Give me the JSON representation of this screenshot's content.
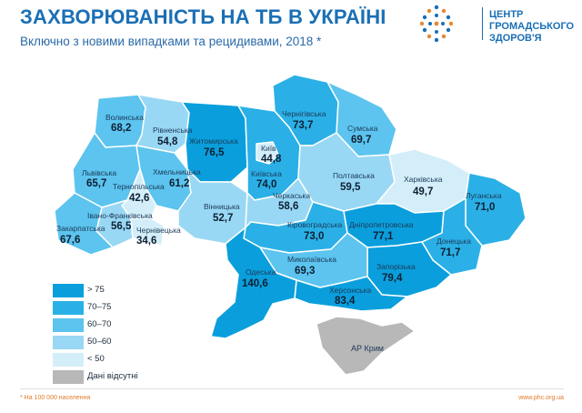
{
  "header": {
    "title": "ЗАХВОРЮВАНІСТЬ НА ТБ В УКРАЇНІ",
    "subtitle": "Включно з новими випадками та рецидивами, 2018 *"
  },
  "logo": {
    "line1": "ЦЕНТР",
    "line2": "ГРОМАДСЬКОГО",
    "line3": "ЗДОРОВ'Я",
    "color": "#1a6fb5",
    "accent": "#e8872e"
  },
  "colors": {
    "gt75": "#0a9fdc",
    "r70_75": "#2ab0e6",
    "r60_70": "#5cc4ee",
    "r50_60": "#99d8f4",
    "lt50": "#d4eef9",
    "nodata": "#b8b8b8"
  },
  "regions": [
    {
      "name": "Волинська",
      "value": "68,2"
    },
    {
      "name": "Рівненська",
      "value": "54,8"
    },
    {
      "name": "Житомирська",
      "value": "76,5"
    },
    {
      "name": "Чернігівська",
      "value": "73,7"
    },
    {
      "name": "Сумська",
      "value": "69,7"
    },
    {
      "name": "Київ",
      "value": "44,8"
    },
    {
      "name": "Київська",
      "value": "74,0"
    },
    {
      "name": "Львівська",
      "value": "65,7"
    },
    {
      "name": "Хмельницька",
      "value": "61,2"
    },
    {
      "name": "Тернопільська",
      "value": "42,6"
    },
    {
      "name": "Полтавська",
      "value": "59,5"
    },
    {
      "name": "Харківська",
      "value": "49,7"
    },
    {
      "name": "Луганська",
      "value": "71,0"
    },
    {
      "name": "Вінницька",
      "value": "52,7"
    },
    {
      "name": "Черкаська",
      "value": "58,6"
    },
    {
      "name": "Івано-Франківська",
      "value": "56,5"
    },
    {
      "name": "Закарпатська",
      "value": "67,6"
    },
    {
      "name": "Чернівецька",
      "value": "34,6"
    },
    {
      "name": "Кіровоградська",
      "value": "73,0"
    },
    {
      "name": "Дніпропетровська",
      "value": "77,1"
    },
    {
      "name": "Донецька",
      "value": "71,7"
    },
    {
      "name": "Одеська",
      "value": "140,6"
    },
    {
      "name": "Миколаївська",
      "value": "69,3"
    },
    {
      "name": "Запорізька",
      "value": "79,4"
    },
    {
      "name": "Херсонська",
      "value": "83,4"
    },
    {
      "name": "АР Крим",
      "value": ""
    }
  ],
  "legend": [
    {
      "label": "> 75"
    },
    {
      "label": "70–75"
    },
    {
      "label": "60–70"
    },
    {
      "label": "50–60"
    },
    {
      "label": "< 50"
    },
    {
      "label": "Дані відсутні"
    }
  ],
  "footer": {
    "note": "* На 100 000 населення",
    "site": "www.phc.org.ua"
  }
}
